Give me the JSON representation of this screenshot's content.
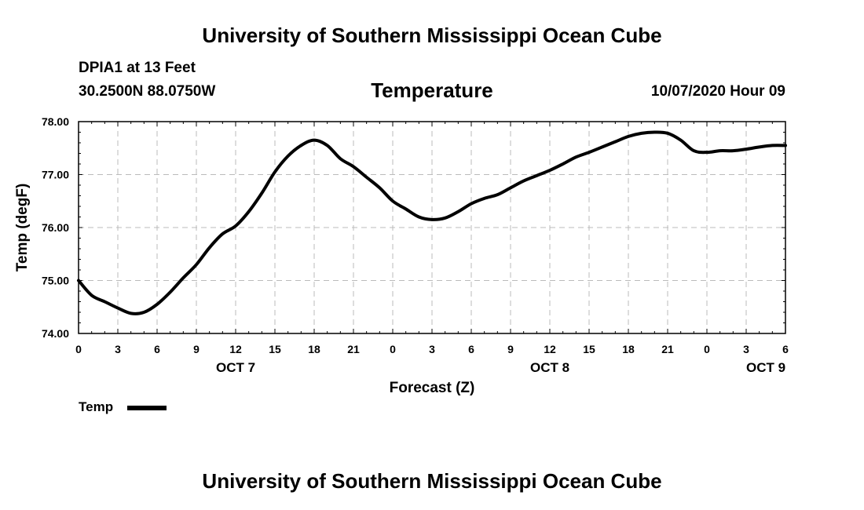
{
  "header": {
    "org_title": "University of Southern Mississippi Ocean Cube",
    "station": "DPIA1 at 13 Feet",
    "coords": "30.2500N 88.0750W",
    "chart_title": "Temperature",
    "timestamp": "10/07/2020 Hour 09"
  },
  "footer": {
    "org_title": "University of Southern Mississippi Ocean Cube"
  },
  "legend": {
    "label": "Temp"
  },
  "chart_data": {
    "type": "line",
    "title": "Temperature",
    "xlabel": "Forecast (Z)",
    "ylabel": "Temp (degF)",
    "ylim": [
      74.0,
      78.0
    ],
    "xlim_hours": [
      0,
      54
    ],
    "y_ticks": [
      "74.00",
      "75.00",
      "76.00",
      "77.00",
      "78.00"
    ],
    "x_ticks": [
      "0",
      "3",
      "6",
      "9",
      "12",
      "15",
      "18",
      "21",
      "0",
      "3",
      "6",
      "9",
      "12",
      "15",
      "18",
      "21",
      "0",
      "3",
      "6"
    ],
    "day_labels": [
      {
        "label": "OCT 7",
        "hour": 12
      },
      {
        "label": "OCT 8",
        "hour": 36
      },
      {
        "label": "OCT 9",
        "hour": 52.5
      }
    ],
    "grid": true,
    "series": [
      {
        "name": "Temp",
        "color": "#000000",
        "x_hours": [
          0,
          1,
          2,
          3,
          4,
          5,
          6,
          7,
          8,
          9,
          10,
          11,
          12,
          13,
          14,
          15,
          16,
          17,
          18,
          19,
          20,
          21,
          22,
          23,
          24,
          25,
          26,
          27,
          28,
          29,
          30,
          31,
          32,
          33,
          34,
          35,
          36,
          37,
          38,
          39,
          40,
          41,
          42,
          43,
          44,
          45,
          46,
          47,
          48,
          49,
          50,
          51,
          52,
          53,
          54
        ],
        "values": [
          75.0,
          74.72,
          74.6,
          74.48,
          74.38,
          74.4,
          74.55,
          74.78,
          75.05,
          75.3,
          75.62,
          75.88,
          76.03,
          76.3,
          76.65,
          77.05,
          77.35,
          77.55,
          77.65,
          77.55,
          77.3,
          77.15,
          76.95,
          76.75,
          76.5,
          76.35,
          76.2,
          76.15,
          76.18,
          76.3,
          76.45,
          76.55,
          76.62,
          76.75,
          76.88,
          76.98,
          77.08,
          77.2,
          77.33,
          77.42,
          77.52,
          77.62,
          77.72,
          77.78,
          77.8,
          77.78,
          77.65,
          77.45,
          77.42,
          77.45,
          77.45,
          77.48,
          77.52,
          77.55,
          77.55
        ]
      }
    ]
  }
}
